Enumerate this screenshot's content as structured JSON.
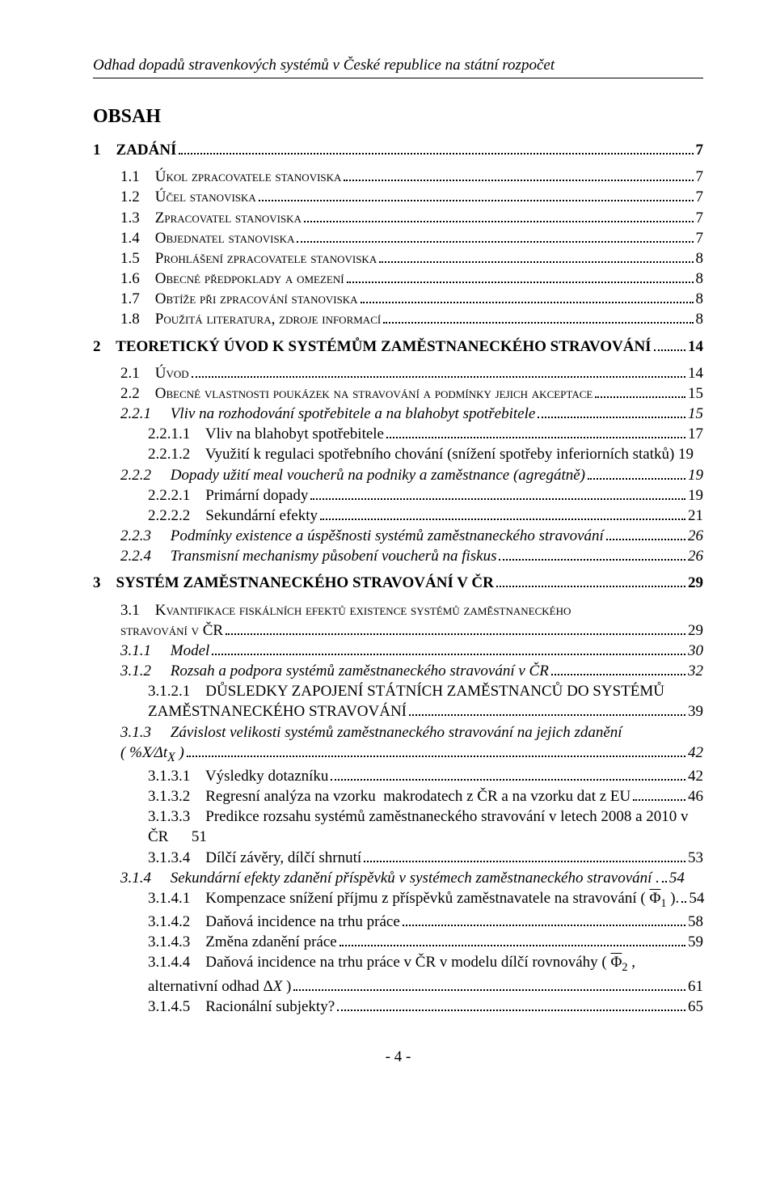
{
  "header": "Odhad dopadů stravenkových systémů v České republice na státní rozpočet",
  "obsah": "OBSAH",
  "toc": [
    {
      "cls": "bold gap-top-big",
      "label": "1    ZADÁNÍ",
      "page": "7"
    },
    {
      "cls": "smallcaps ind1 gap-top",
      "label": "1.1    Úkol zpracovatele stanoviska",
      "page": "7"
    },
    {
      "cls": "smallcaps ind1",
      "label": "1.2    Účel stanoviska",
      "page": "7"
    },
    {
      "cls": "smallcaps ind1",
      "label": "1.3    Zpracovatel stanoviska",
      "page": "7"
    },
    {
      "cls": "smallcaps ind1",
      "label": "1.4    Objednatel stanoviska",
      "page": "7"
    },
    {
      "cls": "smallcaps ind1",
      "label": "1.5    Prohlášení zpracovatele stanoviska",
      "page": "8"
    },
    {
      "cls": "smallcaps ind1",
      "label": "1.6    Obecné předpoklady a omezení",
      "page": "8"
    },
    {
      "cls": "smallcaps ind1",
      "label": "1.7    Obtíže při zpracování stanoviska",
      "page": "8"
    },
    {
      "cls": "smallcaps ind1",
      "label": "1.8    Použitá literatura, zdroje informací",
      "page": "8"
    },
    {
      "cls": "bold gap-top",
      "label": "2    TEORETICKÝ ÚVOD K SYSTÉMŮM ZAMĚSTNANECKÉHO STRAVOVÁNÍ",
      "page": "14"
    },
    {
      "cls": "smallcaps ind1 gap-top",
      "label": "2.1    Úvod",
      "page": "14"
    },
    {
      "cls": "smallcaps ind1",
      "label": "2.2    Obecné vlastnosti poukázek na stravování a podmínky jejich akceptace",
      "page": "15"
    },
    {
      "cls": "italic ind2",
      "label": "2.2.1     Vliv na rozhodování spotřebitele a na blahobyt spotřebitele",
      "page": "15"
    },
    {
      "cls": "ind3",
      "label": "2.2.1.1    Vliv na blahobyt spotřebitele",
      "page": "17"
    },
    {
      "cls": "ind3",
      "label": "2.2.1.2    Využití k regulaci spotřebního chování (snížení spotřeby inferiorních statků) 19",
      "page": null,
      "nodots": true
    },
    {
      "cls": "italic ind2",
      "label": "2.2.2     Dopady užití meal voucherů na podniky a zaměstnance (agregátně)",
      "page": "19"
    },
    {
      "cls": "ind3",
      "label": "2.2.2.1    Primární dopady",
      "page": "19"
    },
    {
      "cls": "ind3",
      "label": "2.2.2.2    Sekundární efekty",
      "page": "21"
    },
    {
      "cls": "italic ind2",
      "label": "2.2.3     Podmínky existence a úspěšnosti systémů zaměstnaneckého stravování",
      "page": "26"
    },
    {
      "cls": "italic ind2",
      "label": "2.2.4     Transmisní mechanismy působení voucherů na fiskus",
      "page": "26"
    },
    {
      "cls": "bold gap-top",
      "label": "3    SYSTÉM ZAMĚSTNANECKÉHO STRAVOVÁNÍ V ČR",
      "page": "29"
    },
    {
      "cls": "smallcaps ind1 gap-top",
      "label": "3.1    Kvantifikace fiskálních efektů existence systémů zaměstnaneckého",
      "page": null,
      "nodots": true
    },
    {
      "cls": "smallcaps ind1",
      "label": "stravování v ČR",
      "page": "29"
    },
    {
      "cls": "italic ind2",
      "label": "3.1.1     Model",
      "page": "30"
    },
    {
      "cls": "italic ind2",
      "label": "3.1.2     Rozsah a podpora systémů zaměstnaneckého stravování v ČR",
      "page": "32"
    },
    {
      "cls": "ind3",
      "label": "3.1.2.1    DŮSLEDKY ZAPOJENÍ STÁTNÍCH ZAMĚSTNANCŮ DO SYSTÉMŮ",
      "page": null,
      "nodots": true
    },
    {
      "cls": "ind3",
      "label": "ZAMĚSTNANECKÉHO STRAVOVÁNÍ",
      "page": "39"
    },
    {
      "cls": "italic ind2",
      "label": "3.1.3     Závislost velikosti systémů zaměstnaneckého stravování na jejich zdanění",
      "page": null,
      "nodots": true
    },
    {
      "cls": "italic ind2",
      "label": "( %X⁄Δt<sub>X</sub> )",
      "page": "42",
      "raw": true
    },
    {
      "cls": "ind3",
      "label": "3.1.3.1    Výsledky dotazníku",
      "page": "42"
    },
    {
      "cls": "ind3",
      "label": "3.1.3.2    Regresní analýza na vzorku  makrodatech z ČR a na vzorku dat z EU",
      "page": "46"
    },
    {
      "cls": "ind3",
      "label": "3.1.3.3    Predikce rozsahu systémů zaměstnaneckého stravování v letech 2008 a 2010 v",
      "page": null,
      "nodots": true
    },
    {
      "cls": "ind3",
      "label": "ČR      51",
      "page": null,
      "nodots": true
    },
    {
      "cls": "ind3",
      "label": "3.1.3.4    Dílčí závěry, dílčí shrnutí",
      "page": "53"
    },
    {
      "cls": "italic ind2",
      "label": "3.1.4     Sekundární efekty zdanění příspěvků v systémech zaměstnaneckého stravování .",
      "page": "54",
      "tightdots": true
    },
    {
      "cls": "ind3",
      "label": "3.1.4.1    Kompenzace snížení příjmu z příspěvků zaměstnavatele na stravování ( <span class=\"overbar\">Φ</span><span class=\"sub\">1</span> ).",
      "page": "54",
      "raw": true,
      "tightdots": true
    },
    {
      "cls": "ind3",
      "label": "3.1.4.2    Daňová incidence na trhu práce",
      "page": "58"
    },
    {
      "cls": "ind3",
      "label": "3.1.4.3    Změna zdanění práce",
      "page": "59"
    },
    {
      "cls": "ind3",
      "label": "3.1.4.4    Daňová incidence na trhu práce v ČR v modelu dílčí rovnováhy ( <span class=\"overbar\">Φ</span><span class=\"sub\">2</span> ,",
      "page": null,
      "nodots": true,
      "raw": true
    },
    {
      "cls": "ind3",
      "label": "alternativní odhad Δ<i>X</i> )",
      "page": "61",
      "raw": true
    },
    {
      "cls": "ind3",
      "label": "3.1.4.5    Racionální subjekty?",
      "page": "65"
    }
  ],
  "footer": "- 4 -"
}
